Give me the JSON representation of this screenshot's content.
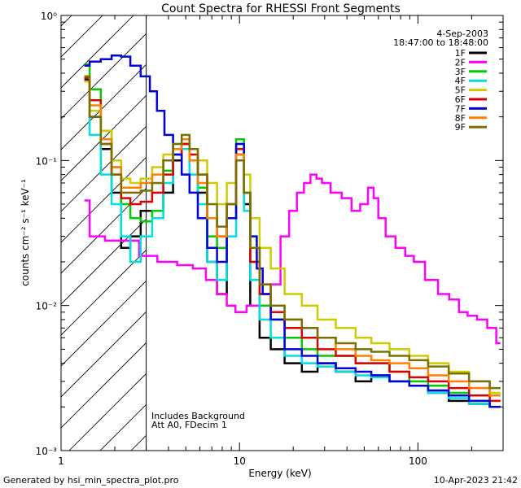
{
  "chart_data": {
    "type": "line",
    "title": "Count Spectra for RHESSI Front Segments",
    "xlabel": "Energy (keV)",
    "ylabel": "counts cm⁻² s⁻¹ keV⁻¹",
    "xscale": "log",
    "yscale": "log",
    "xlim": [
      1,
      300
    ],
    "ylim": [
      0.001,
      1
    ],
    "x_tick_labels": [
      "1",
      "10",
      "100"
    ],
    "y_tick_labels": [
      "10⁻³",
      "10⁻²",
      "10⁻¹",
      "10⁰"
    ],
    "attenuator_threshold_keV": 3,
    "legend": {
      "date": "4-Sep-2003",
      "time_range": "18:47:00 to 18:48:00",
      "position": "top-right"
    },
    "annotations": [
      "Includes Background",
      "Att A0, FDecim 1"
    ],
    "series": [
      {
        "name": "1F",
        "color": "#000000",
        "points": [
          [
            1.35,
            0.36
          ],
          [
            1.55,
            0.2
          ],
          [
            1.8,
            0.12
          ],
          [
            2.05,
            0.06
          ],
          [
            2.3,
            0.025
          ],
          [
            2.6,
            0.03
          ],
          [
            3,
            0.045
          ],
          [
            3.5,
            0.045
          ],
          [
            4,
            0.06
          ],
          [
            4.5,
            0.1
          ],
          [
            5,
            0.13
          ],
          [
            5.5,
            0.1
          ],
          [
            6.2,
            0.06
          ],
          [
            7,
            0.02
          ],
          [
            8,
            0.012
          ],
          [
            9,
            0.04
          ],
          [
            10.2,
            0.11
          ],
          [
            11,
            0.05
          ],
          [
            12,
            0.01
          ],
          [
            14,
            0.006
          ],
          [
            16,
            0.005
          ],
          [
            20,
            0.004
          ],
          [
            25,
            0.0035
          ],
          [
            30,
            0.004
          ],
          [
            40,
            0.0035
          ],
          [
            50,
            0.003
          ],
          [
            60,
            0.0033
          ],
          [
            80,
            0.003
          ],
          [
            100,
            0.0028
          ],
          [
            130,
            0.0025
          ],
          [
            170,
            0.0022
          ],
          [
            220,
            0.0021
          ],
          [
            290,
            0.002
          ]
        ]
      },
      {
        "name": "2F",
        "color": "#ff00ff",
        "points": [
          [
            1.35,
            0.053
          ],
          [
            1.55,
            0.03
          ],
          [
            2,
            0.028
          ],
          [
            2.5,
            0.028
          ],
          [
            3,
            0.022
          ],
          [
            4,
            0.02
          ],
          [
            5,
            0.019
          ],
          [
            6,
            0.018
          ],
          [
            7,
            0.015
          ],
          [
            8,
            0.012
          ],
          [
            9,
            0.01
          ],
          [
            10,
            0.009
          ],
          [
            12,
            0.01
          ],
          [
            14,
            0.012
          ],
          [
            16,
            0.014
          ],
          [
            18,
            0.03
          ],
          [
            20,
            0.045
          ],
          [
            22,
            0.06
          ],
          [
            24,
            0.07
          ],
          [
            26,
            0.08
          ],
          [
            28,
            0.075
          ],
          [
            30,
            0.07
          ],
          [
            35,
            0.06
          ],
          [
            40,
            0.055
          ],
          [
            45,
            0.045
          ],
          [
            50,
            0.05
          ],
          [
            55,
            0.065
          ],
          [
            58,
            0.055
          ],
          [
            62,
            0.04
          ],
          [
            70,
            0.03
          ],
          [
            80,
            0.025
          ],
          [
            90,
            0.022
          ],
          [
            100,
            0.02
          ],
          [
            120,
            0.015
          ],
          [
            140,
            0.012
          ],
          [
            160,
            0.011
          ],
          [
            180,
            0.009
          ],
          [
            200,
            0.0085
          ],
          [
            230,
            0.008
          ],
          [
            260,
            0.007
          ],
          [
            290,
            0.0055
          ]
        ]
      },
      {
        "name": "3F",
        "color": "#00cc00",
        "points": [
          [
            1.35,
            0.46
          ],
          [
            1.55,
            0.31
          ],
          [
            1.8,
            0.16
          ],
          [
            2.05,
            0.09
          ],
          [
            2.3,
            0.05
          ],
          [
            2.6,
            0.04
          ],
          [
            3,
            0.038
          ],
          [
            3.5,
            0.045
          ],
          [
            4,
            0.085
          ],
          [
            4.5,
            0.12
          ],
          [
            5,
            0.14
          ],
          [
            5.5,
            0.1
          ],
          [
            6.2,
            0.065
          ],
          [
            7,
            0.03
          ],
          [
            8,
            0.025
          ],
          [
            9,
            0.04
          ],
          [
            10.2,
            0.14
          ],
          [
            11,
            0.06
          ],
          [
            12,
            0.025
          ],
          [
            14,
            0.01
          ],
          [
            16,
            0.008
          ],
          [
            20,
            0.006
          ],
          [
            25,
            0.005
          ],
          [
            30,
            0.0045
          ],
          [
            40,
            0.0045
          ],
          [
            50,
            0.004
          ],
          [
            60,
            0.004
          ],
          [
            80,
            0.0035
          ],
          [
            100,
            0.003
          ],
          [
            130,
            0.0028
          ],
          [
            170,
            0.0025
          ],
          [
            220,
            0.0022
          ],
          [
            290,
            0.002
          ]
        ]
      },
      {
        "name": "4F",
        "color": "#00e0e0",
        "points": [
          [
            1.35,
            0.35
          ],
          [
            1.55,
            0.15
          ],
          [
            1.8,
            0.08
          ],
          [
            2.05,
            0.05
          ],
          [
            2.3,
            0.03
          ],
          [
            2.6,
            0.02
          ],
          [
            3,
            0.03
          ],
          [
            3.5,
            0.04
          ],
          [
            4,
            0.07
          ],
          [
            4.5,
            0.11
          ],
          [
            5,
            0.12
          ],
          [
            5.5,
            0.08
          ],
          [
            6.2,
            0.05
          ],
          [
            7,
            0.02
          ],
          [
            8,
            0.015
          ],
          [
            9,
            0.03
          ],
          [
            10.2,
            0.12
          ],
          [
            11,
            0.045
          ],
          [
            12,
            0.015
          ],
          [
            14,
            0.008
          ],
          [
            16,
            0.006
          ],
          [
            20,
            0.0045
          ],
          [
            25,
            0.004
          ],
          [
            30,
            0.0038
          ],
          [
            40,
            0.0035
          ],
          [
            50,
            0.0033
          ],
          [
            60,
            0.0032
          ],
          [
            80,
            0.003
          ],
          [
            100,
            0.0028
          ],
          [
            130,
            0.0025
          ],
          [
            170,
            0.0023
          ],
          [
            220,
            0.0021
          ],
          [
            290,
            0.002
          ]
        ]
      },
      {
        "name": "5F",
        "color": "#cccc00",
        "points": [
          [
            1.35,
            0.35
          ],
          [
            1.55,
            0.22
          ],
          [
            1.8,
            0.16
          ],
          [
            2.05,
            0.1
          ],
          [
            2.3,
            0.075
          ],
          [
            2.6,
            0.07
          ],
          [
            3,
            0.075
          ],
          [
            3.5,
            0.09
          ],
          [
            4,
            0.11
          ],
          [
            4.5,
            0.13
          ],
          [
            5,
            0.14
          ],
          [
            5.5,
            0.12
          ],
          [
            6.2,
            0.1
          ],
          [
            7,
            0.07
          ],
          [
            8,
            0.05
          ],
          [
            9,
            0.07
          ],
          [
            10.2,
            0.13
          ],
          [
            11,
            0.08
          ],
          [
            12,
            0.04
          ],
          [
            14,
            0.025
          ],
          [
            16,
            0.018
          ],
          [
            20,
            0.012
          ],
          [
            25,
            0.01
          ],
          [
            30,
            0.008
          ],
          [
            40,
            0.007
          ],
          [
            50,
            0.006
          ],
          [
            60,
            0.0055
          ],
          [
            80,
            0.005
          ],
          [
            100,
            0.0045
          ],
          [
            130,
            0.004
          ],
          [
            170,
            0.0035
          ],
          [
            220,
            0.003
          ],
          [
            290,
            0.0025
          ]
        ]
      },
      {
        "name": "6F",
        "color": "#dd0000",
        "points": [
          [
            1.35,
            0.37
          ],
          [
            1.55,
            0.26
          ],
          [
            1.8,
            0.13
          ],
          [
            2.05,
            0.08
          ],
          [
            2.3,
            0.055
          ],
          [
            2.6,
            0.05
          ],
          [
            3,
            0.052
          ],
          [
            3.5,
            0.06
          ],
          [
            4,
            0.08
          ],
          [
            4.5,
            0.11
          ],
          [
            5,
            0.13
          ],
          [
            5.5,
            0.11
          ],
          [
            6.2,
            0.08
          ],
          [
            7,
            0.04
          ],
          [
            8,
            0.03
          ],
          [
            9,
            0.05
          ],
          [
            10.2,
            0.12
          ],
          [
            11,
            0.06
          ],
          [
            12,
            0.02
          ],
          [
            14,
            0.012
          ],
          [
            16,
            0.009
          ],
          [
            20,
            0.007
          ],
          [
            25,
            0.006
          ],
          [
            30,
            0.005
          ],
          [
            40,
            0.0045
          ],
          [
            50,
            0.004
          ],
          [
            60,
            0.004
          ],
          [
            80,
            0.0035
          ],
          [
            100,
            0.0032
          ],
          [
            130,
            0.003
          ],
          [
            170,
            0.0027
          ],
          [
            220,
            0.0024
          ],
          [
            290,
            0.0022
          ]
        ]
      },
      {
        "name": "7F",
        "color": "#0000dd",
        "points": [
          [
            1.35,
            0.45
          ],
          [
            1.55,
            0.48
          ],
          [
            1.8,
            0.5
          ],
          [
            2.05,
            0.53
          ],
          [
            2.3,
            0.52
          ],
          [
            2.6,
            0.45
          ],
          [
            3,
            0.38
          ],
          [
            3.3,
            0.3
          ],
          [
            3.6,
            0.22
          ],
          [
            4,
            0.15
          ],
          [
            4.5,
            0.11
          ],
          [
            5,
            0.08
          ],
          [
            5.5,
            0.06
          ],
          [
            6.2,
            0.04
          ],
          [
            7,
            0.025
          ],
          [
            8,
            0.02
          ],
          [
            9,
            0.04
          ],
          [
            10.2,
            0.13
          ],
          [
            11,
            0.06
          ],
          [
            12,
            0.03
          ],
          [
            13,
            0.018
          ],
          [
            14,
            0.012
          ],
          [
            16,
            0.008
          ],
          [
            20,
            0.005
          ],
          [
            25,
            0.0045
          ],
          [
            30,
            0.004
          ],
          [
            40,
            0.0037
          ],
          [
            50,
            0.0035
          ],
          [
            60,
            0.0033
          ],
          [
            80,
            0.003
          ],
          [
            100,
            0.0028
          ],
          [
            130,
            0.0026
          ],
          [
            170,
            0.0024
          ],
          [
            220,
            0.0022
          ],
          [
            290,
            0.002
          ]
        ]
      },
      {
        "name": "8F",
        "color": "#ff8000",
        "points": [
          [
            1.35,
            0.38
          ],
          [
            1.55,
            0.24
          ],
          [
            1.8,
            0.14
          ],
          [
            2.05,
            0.09
          ],
          [
            2.3,
            0.065
          ],
          [
            2.6,
            0.065
          ],
          [
            3,
            0.07
          ],
          [
            3.5,
            0.08
          ],
          [
            4,
            0.1
          ],
          [
            4.5,
            0.12
          ],
          [
            5,
            0.14
          ],
          [
            5.5,
            0.1
          ],
          [
            6.2,
            0.07
          ],
          [
            7,
            0.04
          ],
          [
            8,
            0.03
          ],
          [
            9,
            0.05
          ],
          [
            10.2,
            0.11
          ],
          [
            11,
            0.06
          ],
          [
            12,
            0.025
          ],
          [
            14,
            0.014
          ],
          [
            16,
            0.01
          ],
          [
            20,
            0.008
          ],
          [
            25,
            0.007
          ],
          [
            30,
            0.006
          ],
          [
            40,
            0.005
          ],
          [
            50,
            0.0045
          ],
          [
            60,
            0.0042
          ],
          [
            80,
            0.004
          ],
          [
            100,
            0.0037
          ],
          [
            130,
            0.0033
          ],
          [
            170,
            0.003
          ],
          [
            220,
            0.0027
          ],
          [
            290,
            0.0024
          ]
        ]
      },
      {
        "name": "9F",
        "color": "#7a7000",
        "points": [
          [
            1.35,
            0.38
          ],
          [
            1.55,
            0.2
          ],
          [
            1.8,
            0.13
          ],
          [
            2.05,
            0.08
          ],
          [
            2.3,
            0.06
          ],
          [
            2.6,
            0.06
          ],
          [
            3,
            0.062
          ],
          [
            3.5,
            0.07
          ],
          [
            4,
            0.1
          ],
          [
            4.5,
            0.13
          ],
          [
            5,
            0.15
          ],
          [
            5.5,
            0.12
          ],
          [
            6.2,
            0.08
          ],
          [
            7,
            0.05
          ],
          [
            8,
            0.035
          ],
          [
            9,
            0.05
          ],
          [
            10.2,
            0.1
          ],
          [
            11,
            0.06
          ],
          [
            12,
            0.025
          ],
          [
            14,
            0.014
          ],
          [
            16,
            0.01
          ],
          [
            20,
            0.008
          ],
          [
            25,
            0.007
          ],
          [
            30,
            0.006
          ],
          [
            40,
            0.0055
          ],
          [
            50,
            0.005
          ],
          [
            60,
            0.0048
          ],
          [
            80,
            0.0045
          ],
          [
            100,
            0.0042
          ],
          [
            130,
            0.0038
          ],
          [
            170,
            0.0034
          ],
          [
            220,
            0.003
          ],
          [
            290,
            0.0027
          ]
        ]
      }
    ]
  },
  "footer": {
    "left": "Generated by hsi_min_spectra_plot.pro",
    "right": "10-Apr-2023 21:42"
  }
}
